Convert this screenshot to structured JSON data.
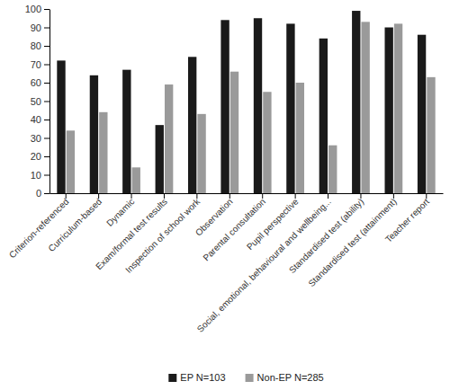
{
  "chart_data": {
    "type": "bar",
    "categories": [
      "Criterion-referenced",
      "Curriculum-based",
      "Dynamic",
      "Exam/formal test results",
      "Inspection of school work",
      "Observation",
      "Parental consultation",
      "Pupil perspective",
      "Social, emotional, behavioural and wellbeing...",
      "Standardised test (ability)",
      "Standardised test (attainment)",
      "Teacher report"
    ],
    "series": [
      {
        "name": "EP N=103",
        "color": "#1a1a1a",
        "values": [
          72,
          64,
          67,
          37,
          74,
          94,
          95,
          92,
          84,
          99,
          90,
          86
        ]
      },
      {
        "name": "Non-EP N=285",
        "color": "#9a9a9a",
        "values": [
          34,
          44,
          14,
          59,
          43,
          66,
          55,
          60,
          26,
          93,
          92,
          63
        ]
      }
    ],
    "ylim": [
      0,
      100
    ],
    "yticks": [
      0,
      10,
      20,
      30,
      40,
      50,
      60,
      70,
      80,
      90,
      100
    ],
    "grid": false,
    "legend": "bottom"
  }
}
